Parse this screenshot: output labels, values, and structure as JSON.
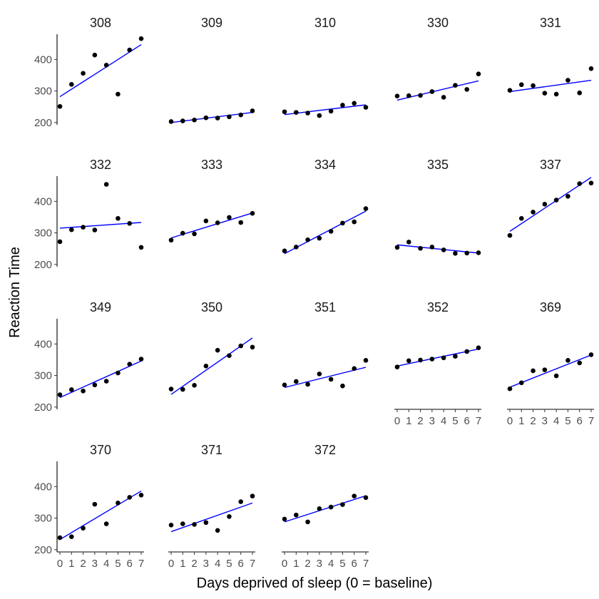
{
  "chart_data": {
    "type": "scatter",
    "xlabel": "Days deprived of sleep (0 = baseline)",
    "ylabel": "Reaction Time",
    "xlim": [
      0,
      7
    ],
    "ylim": [
      195,
      480
    ],
    "x_ticks": [
      0,
      1,
      2,
      3,
      4,
      5,
      6,
      7
    ],
    "y_ticks": [
      200,
      300,
      400
    ],
    "grid": false,
    "colors": {
      "points": "#000000",
      "fit_line": "#0000ff"
    },
    "panels": [
      {
        "subject": "308",
        "values": [
          251,
          321,
          356,
          414,
          382,
          290,
          430,
          466
        ],
        "fit": [
          282,
          447
        ]
      },
      {
        "subject": "309",
        "values": [
          203,
          205,
          208,
          215,
          214,
          218,
          224,
          237
        ],
        "fit": [
          200,
          232
        ]
      },
      {
        "subject": "310",
        "values": [
          234,
          232,
          230,
          222,
          236,
          255,
          261,
          248
        ],
        "fit": [
          225,
          256
        ]
      },
      {
        "subject": "330",
        "values": [
          284,
          285,
          286,
          298,
          280,
          318,
          305,
          354
        ],
        "fit": [
          271,
          332
        ]
      },
      {
        "subject": "331",
        "values": [
          302,
          320,
          317,
          293,
          290,
          334,
          294,
          371
        ],
        "fit": [
          298,
          334
        ]
      },
      {
        "subject": "332",
        "values": [
          272,
          310,
          318,
          309,
          454,
          346,
          330,
          254
        ],
        "fit": [
          315,
          333
        ]
      },
      {
        "subject": "333",
        "values": [
          277,
          299,
          297,
          338,
          332,
          349,
          333,
          362
        ],
        "fit": [
          284,
          363
        ]
      },
      {
        "subject": "334",
        "values": [
          243,
          255,
          278,
          283,
          305,
          331,
          335,
          377
        ],
        "fit": [
          234,
          369
        ]
      },
      {
        "subject": "335",
        "values": [
          254,
          271,
          251,
          255,
          246,
          235,
          236,
          237
        ],
        "fit": [
          262,
          236
        ]
      },
      {
        "subject": "337",
        "values": [
          292,
          346,
          366,
          391,
          404,
          416,
          456,
          458
        ],
        "fit": [
          305,
          476
        ]
      },
      {
        "subject": "349",
        "values": [
          239,
          255,
          251,
          270,
          282,
          308,
          336,
          352
        ],
        "fit": [
          230,
          346
        ]
      },
      {
        "subject": "350",
        "values": [
          257,
          256,
          269,
          330,
          380,
          363,
          394,
          390
        ],
        "fit": [
          240,
          419
        ]
      },
      {
        "subject": "351",
        "values": [
          270,
          281,
          272,
          305,
          288,
          267,
          322,
          348
        ],
        "fit": [
          262,
          326
        ]
      },
      {
        "subject": "352",
        "values": [
          327,
          347,
          349,
          352,
          356,
          361,
          376,
          388
        ],
        "fit": [
          330,
          384
        ]
      },
      {
        "subject": "369",
        "values": [
          258,
          277,
          315,
          318,
          299,
          348,
          340,
          366
        ],
        "fit": [
          263,
          365
        ]
      },
      {
        "subject": "370",
        "values": [
          238,
          241,
          268,
          344,
          282,
          348,
          366,
          373
        ],
        "fit": [
          232,
          386
        ]
      },
      {
        "subject": "371",
        "values": [
          278,
          282,
          280,
          286,
          261,
          305,
          352,
          370
        ],
        "fit": [
          257,
          348
        ]
      },
      {
        "subject": "372",
        "values": [
          297,
          310,
          288,
          330,
          335,
          343,
          370,
          365
        ],
        "fit": [
          288,
          371
        ]
      }
    ]
  }
}
